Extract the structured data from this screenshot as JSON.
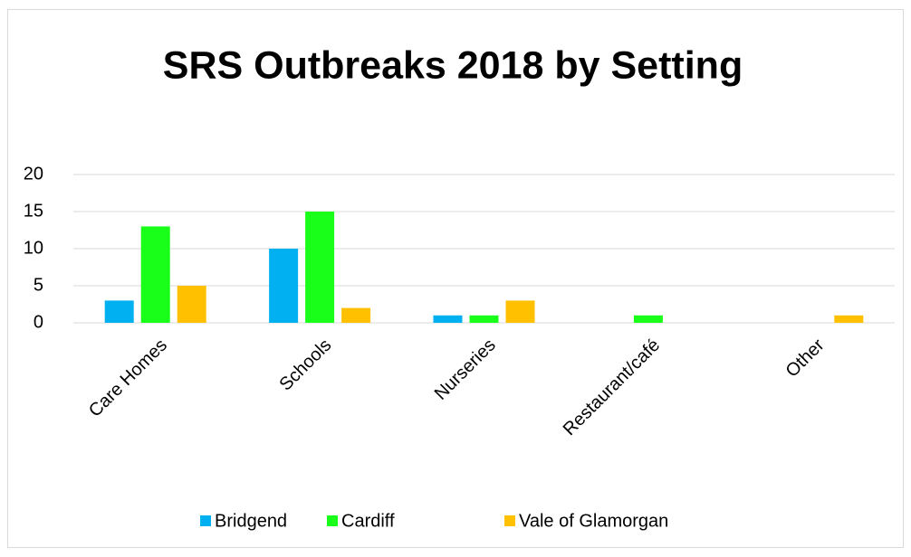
{
  "chart_data": {
    "type": "bar",
    "title": "SRS Outbreaks 2018 by Setting",
    "categories": [
      "Care Homes",
      "Schools",
      "Nurseries",
      "Restaurant/café",
      "Other"
    ],
    "series": [
      {
        "name": "Bridgend",
        "color": "#00b0f0",
        "values": [
          3,
          10,
          1,
          0,
          0
        ]
      },
      {
        "name": "Cardiff",
        "color": "#1aff1a",
        "values": [
          13,
          15,
          1,
          1,
          0
        ]
      },
      {
        "name": "Vale of Glamorgan",
        "color": "#ffc000",
        "values": [
          5,
          2,
          3,
          0,
          1
        ]
      }
    ],
    "ylim": [
      0,
      20
    ],
    "yticks": [
      0,
      5,
      10,
      15,
      20
    ],
    "grid": true,
    "legend": "bottom"
  }
}
